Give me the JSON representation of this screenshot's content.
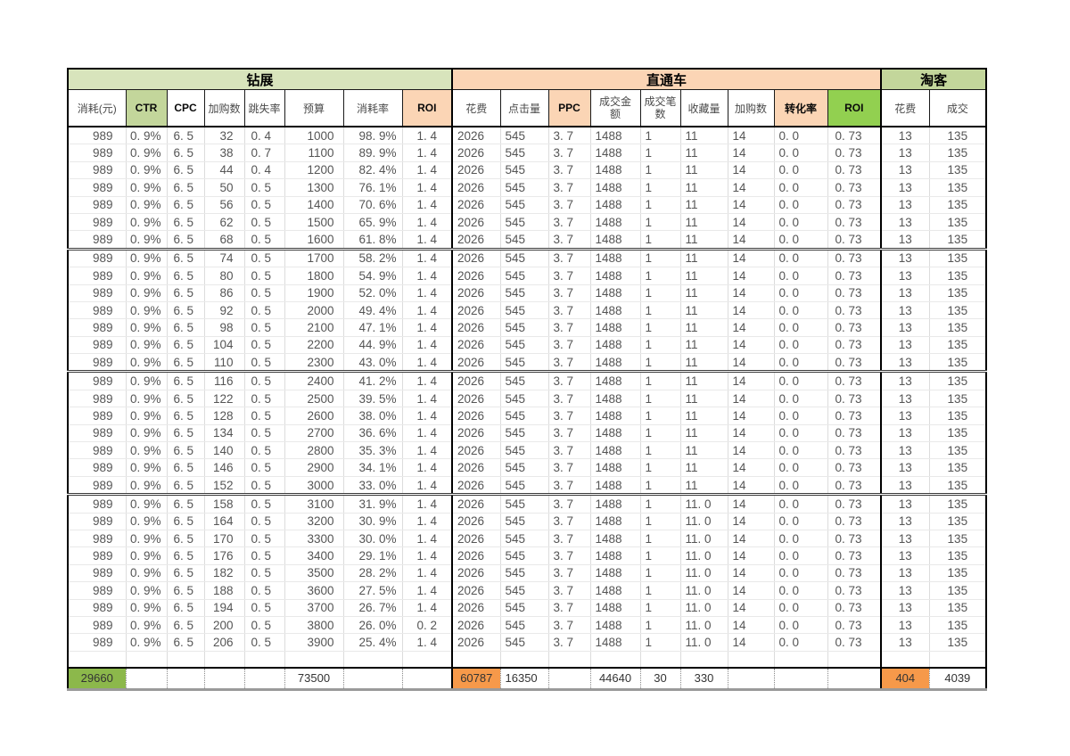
{
  "sections": [
    {
      "title": "钻展",
      "cols": 8,
      "bg": "#D8E4BC"
    },
    {
      "title": "直通车",
      "cols": 9,
      "bg": "#FBD5B5"
    },
    {
      "title": "淘客",
      "cols": 2,
      "bg": "#C3D69B"
    }
  ],
  "columns": [
    {
      "label": "消耗(元)"
    },
    {
      "label": "CTR",
      "bg": "#C3D69B",
      "dark": true
    },
    {
      "label": "CPC",
      "dark": true
    },
    {
      "label": "加购数"
    },
    {
      "label": "跳失率"
    },
    {
      "label": "预算"
    },
    {
      "label": "消耗率"
    },
    {
      "label": "ROI",
      "bg": "#FBD5B5",
      "dark": true
    },
    {
      "label": "花费"
    },
    {
      "label": "点击量"
    },
    {
      "label": "PPC",
      "bg": "#FBD5B5",
      "dark": true
    },
    {
      "label": "成交金额",
      "wrap": true
    },
    {
      "label": "成交笔数",
      "wrap": true
    },
    {
      "label": "收藏量"
    },
    {
      "label": "加购数"
    },
    {
      "label": "转化率",
      "bg": "#FBD5B5",
      "dark": true
    },
    {
      "label": "ROI",
      "bg": "#92D050",
      "dark": true
    },
    {
      "label": "花费"
    },
    {
      "label": "成交"
    }
  ],
  "rows": [
    [
      "989",
      "0. 9%",
      "6. 5",
      "32",
      "0. 4",
      "1000",
      "98. 9%",
      "1. 4",
      "2026",
      "545",
      "3. 7",
      "1488",
      "1",
      "11",
      "14",
      "0. 0",
      "0. 73",
      "13",
      "135"
    ],
    [
      "989",
      "0. 9%",
      "6. 5",
      "38",
      "0. 7",
      "1100",
      "89. 9%",
      "1. 4",
      "2026",
      "545",
      "3. 7",
      "1488",
      "1",
      "11",
      "14",
      "0. 0",
      "0. 73",
      "13",
      "135"
    ],
    [
      "989",
      "0. 9%",
      "6. 5",
      "44",
      "0. 4",
      "1200",
      "82. 4%",
      "1. 4",
      "2026",
      "545",
      "3. 7",
      "1488",
      "1",
      "11",
      "14",
      "0. 0",
      "0. 73",
      "13",
      "135"
    ],
    [
      "989",
      "0. 9%",
      "6. 5",
      "50",
      "0. 5",
      "1300",
      "76. 1%",
      "1. 4",
      "2026",
      "545",
      "3. 7",
      "1488",
      "1",
      "11",
      "14",
      "0. 0",
      "0. 73",
      "13",
      "135"
    ],
    [
      "989",
      "0. 9%",
      "6. 5",
      "56",
      "0. 5",
      "1400",
      "70. 6%",
      "1. 4",
      "2026",
      "545",
      "3. 7",
      "1488",
      "1",
      "11",
      "14",
      "0. 0",
      "0. 73",
      "13",
      "135"
    ],
    [
      "989",
      "0. 9%",
      "6. 5",
      "62",
      "0. 5",
      "1500",
      "65. 9%",
      "1. 4",
      "2026",
      "545",
      "3. 7",
      "1488",
      "1",
      "11",
      "14",
      "0. 0",
      "0. 73",
      "13",
      "135"
    ],
    [
      "989",
      "0. 9%",
      "6. 5",
      "68",
      "0. 5",
      "1600",
      "61. 8%",
      "1. 4",
      "2026",
      "545",
      "3. 7",
      "1488",
      "1",
      "11",
      "14",
      "0. 0",
      "0. 73",
      "13",
      "135"
    ],
    [
      "989",
      "0. 9%",
      "6. 5",
      "74",
      "0. 5",
      "1700",
      "58. 2%",
      "1. 4",
      "2026",
      "545",
      "3. 7",
      "1488",
      "1",
      "11",
      "14",
      "0. 0",
      "0. 73",
      "13",
      "135"
    ],
    [
      "989",
      "0. 9%",
      "6. 5",
      "80",
      "0. 5",
      "1800",
      "54. 9%",
      "1. 4",
      "2026",
      "545",
      "3. 7",
      "1488",
      "1",
      "11",
      "14",
      "0. 0",
      "0. 73",
      "13",
      "135"
    ],
    [
      "989",
      "0. 9%",
      "6. 5",
      "86",
      "0. 5",
      "1900",
      "52. 0%",
      "1. 4",
      "2026",
      "545",
      "3. 7",
      "1488",
      "1",
      "11",
      "14",
      "0. 0",
      "0. 73",
      "13",
      "135"
    ],
    [
      "989",
      "0. 9%",
      "6. 5",
      "92",
      "0. 5",
      "2000",
      "49. 4%",
      "1. 4",
      "2026",
      "545",
      "3. 7",
      "1488",
      "1",
      "11",
      "14",
      "0. 0",
      "0. 73",
      "13",
      "135"
    ],
    [
      "989",
      "0. 9%",
      "6. 5",
      "98",
      "0. 5",
      "2100",
      "47. 1%",
      "1. 4",
      "2026",
      "545",
      "3. 7",
      "1488",
      "1",
      "11",
      "14",
      "0. 0",
      "0. 73",
      "13",
      "135"
    ],
    [
      "989",
      "0. 9%",
      "6. 5",
      "104",
      "0. 5",
      "2200",
      "44. 9%",
      "1. 4",
      "2026",
      "545",
      "3. 7",
      "1488",
      "1",
      "11",
      "14",
      "0. 0",
      "0. 73",
      "13",
      "135"
    ],
    [
      "989",
      "0. 9%",
      "6. 5",
      "110",
      "0. 5",
      "2300",
      "43. 0%",
      "1. 4",
      "2026",
      "545",
      "3. 7",
      "1488",
      "1",
      "11",
      "14",
      "0. 0",
      "0. 73",
      "13",
      "135"
    ],
    [
      "989",
      "0. 9%",
      "6. 5",
      "116",
      "0. 5",
      "2400",
      "41. 2%",
      "1. 4",
      "2026",
      "545",
      "3. 7",
      "1488",
      "1",
      "11",
      "14",
      "0. 0",
      "0. 73",
      "13",
      "135"
    ],
    [
      "989",
      "0. 9%",
      "6. 5",
      "122",
      "0. 5",
      "2500",
      "39. 5%",
      "1. 4",
      "2026",
      "545",
      "3. 7",
      "1488",
      "1",
      "11",
      "14",
      "0. 0",
      "0. 73",
      "13",
      "135"
    ],
    [
      "989",
      "0. 9%",
      "6. 5",
      "128",
      "0. 5",
      "2600",
      "38. 0%",
      "1. 4",
      "2026",
      "545",
      "3. 7",
      "1488",
      "1",
      "11",
      "14",
      "0. 0",
      "0. 73",
      "13",
      "135"
    ],
    [
      "989",
      "0. 9%",
      "6. 5",
      "134",
      "0. 5",
      "2700",
      "36. 6%",
      "1. 4",
      "2026",
      "545",
      "3. 7",
      "1488",
      "1",
      "11",
      "14",
      "0. 0",
      "0. 73",
      "13",
      "135"
    ],
    [
      "989",
      "0. 9%",
      "6. 5",
      "140",
      "0. 5",
      "2800",
      "35. 3%",
      "1. 4",
      "2026",
      "545",
      "3. 7",
      "1488",
      "1",
      "11",
      "14",
      "0. 0",
      "0. 73",
      "13",
      "135"
    ],
    [
      "989",
      "0. 9%",
      "6. 5",
      "146",
      "0. 5",
      "2900",
      "34. 1%",
      "1. 4",
      "2026",
      "545",
      "3. 7",
      "1488",
      "1",
      "11",
      "14",
      "0. 0",
      "0. 73",
      "13",
      "135"
    ],
    [
      "989",
      "0. 9%",
      "6. 5",
      "152",
      "0. 5",
      "3000",
      "33. 0%",
      "1. 4",
      "2026",
      "545",
      "3. 7",
      "1488",
      "1",
      "11",
      "14",
      "0. 0",
      "0. 73",
      "13",
      "135"
    ],
    [
      "989",
      "0. 9%",
      "6. 5",
      "158",
      "0. 5",
      "3100",
      "31. 9%",
      "1. 4",
      "2026",
      "545",
      "3. 7",
      "1488",
      "1",
      "11. 0",
      "14",
      "0. 0",
      "0. 73",
      "13",
      "135"
    ],
    [
      "989",
      "0. 9%",
      "6. 5",
      "164",
      "0. 5",
      "3200",
      "30. 9%",
      "1. 4",
      "2026",
      "545",
      "3. 7",
      "1488",
      "1",
      "11. 0",
      "14",
      "0. 0",
      "0. 73",
      "13",
      "135"
    ],
    [
      "989",
      "0. 9%",
      "6. 5",
      "170",
      "0. 5",
      "3300",
      "30. 0%",
      "1. 4",
      "2026",
      "545",
      "3. 7",
      "1488",
      "1",
      "11. 0",
      "14",
      "0. 0",
      "0. 73",
      "13",
      "135"
    ],
    [
      "989",
      "0. 9%",
      "6. 5",
      "176",
      "0. 5",
      "3400",
      "29. 1%",
      "1. 4",
      "2026",
      "545",
      "3. 7",
      "1488",
      "1",
      "11. 0",
      "14",
      "0. 0",
      "0. 73",
      "13",
      "135"
    ],
    [
      "989",
      "0. 9%",
      "6. 5",
      "182",
      "0. 5",
      "3500",
      "28. 2%",
      "1. 4",
      "2026",
      "545",
      "3. 7",
      "1488",
      "1",
      "11. 0",
      "14",
      "0. 0",
      "0. 73",
      "13",
      "135"
    ],
    [
      "989",
      "0. 9%",
      "6. 5",
      "188",
      "0. 5",
      "3600",
      "27. 5%",
      "1. 4",
      "2026",
      "545",
      "3. 7",
      "1488",
      "1",
      "11. 0",
      "14",
      "0. 0",
      "0. 73",
      "13",
      "135"
    ],
    [
      "989",
      "0. 9%",
      "6. 5",
      "194",
      "0. 5",
      "3700",
      "26. 7%",
      "1. 4",
      "2026",
      "545",
      "3. 7",
      "1488",
      "1",
      "11. 0",
      "14",
      "0. 0",
      "0. 73",
      "13",
      "135"
    ],
    [
      "989",
      "0. 9%",
      "6. 5",
      "200",
      "0. 5",
      "3800",
      "26. 0%",
      "0. 2",
      "2026",
      "545",
      "3. 7",
      "1488",
      "1",
      "11. 0",
      "14",
      "0. 0",
      "0. 73",
      "13",
      "135"
    ],
    [
      "989",
      "0. 9%",
      "6. 5",
      "206",
      "0. 5",
      "3900",
      "25. 4%",
      "1. 4",
      "2026",
      "545",
      "3. 7",
      "1488",
      "1",
      "11. 0",
      "14",
      "0. 0",
      "0. 73",
      "13",
      "135"
    ]
  ],
  "group_end_rows": [
    6,
    13,
    20
  ],
  "totals": [
    "29660",
    "",
    "",
    "",
    "",
    "73500",
    "",
    "",
    "60787",
    "16350",
    "",
    "44640",
    "30",
    "330",
    "",
    "",
    "",
    "404",
    "4039"
  ],
  "totals_fills": {
    "0": "#8CB84B",
    "8": "#F6994A",
    "17": "#F6994A"
  },
  "colors": {
    "section_zuanzhan": "#D8E4BC",
    "section_zhitongche": "#FBD5B5",
    "section_taoke": "#C3D69B",
    "header_green_mid": "#C3D69B",
    "header_peach": "#FBD5B5",
    "header_green_bright": "#92D050",
    "total_green": "#8CB84B",
    "total_orange": "#F6994A"
  }
}
